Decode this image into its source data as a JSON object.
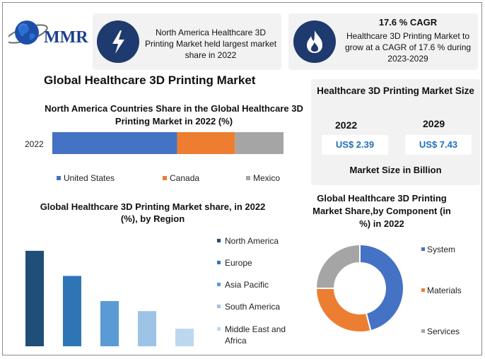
{
  "brand": {
    "logo_text": "MMR"
  },
  "info_box_left": {
    "text": "North America Healthcare 3D Printing Market held largest market share in 2022",
    "icon": "lightning-icon"
  },
  "info_box_right": {
    "title": "17.6 % CAGR",
    "text": "Healthcare 3D Printing Market to grow at a CAGR of 17.6 % during 2023-2029",
    "icon": "flame-icon"
  },
  "main_title": "Global Healthcare 3D Printing Market",
  "market_size": {
    "title": "Healthcare 3D Printing Market Size",
    "year_1": "2022",
    "value_1": "US$ 2.39",
    "year_2": "2029",
    "value_2": "US$ 7.43",
    "footer": "Market Size in Billion"
  },
  "colors": {
    "navy": "#1e3a6e",
    "united_states": "#4472c4",
    "canada": "#ed7d31",
    "mexico": "#a5a5a5",
    "north_america": "#1f4e79",
    "europe": "#2e75b6",
    "asia_pacific": "#5b9bd5",
    "south_america": "#9dc3e6",
    "mea": "#bdd7ee"
  },
  "chart_data": [
    {
      "type": "bar",
      "orientation": "horizontal-stacked",
      "title": "North America Countries Share in the Global Healthcare 3D Printing Market  in 2022 (%)",
      "categories": [
        "2022"
      ],
      "series": [
        {
          "name": "United States",
          "values": [
            54
          ]
        },
        {
          "name": "Canada",
          "values": [
            25
          ]
        },
        {
          "name": "Mexico",
          "values": [
            21
          ]
        }
      ],
      "legend": "bottom"
    },
    {
      "type": "bar",
      "title": "Global Healthcare 3D Printing Market share, in 2022 (%), by Region",
      "categories": [
        "North America",
        "Europe",
        "Asia Pacific",
        "South America",
        "Middle East and Africa"
      ],
      "values": [
        38,
        28,
        18,
        14,
        7
      ],
      "ylim": [
        0,
        45
      ],
      "legend": "right"
    },
    {
      "type": "pie",
      "style": "donut",
      "title": "Global Healthcare 3D Printing Market Share,by Component (in %) in 2022",
      "categories": [
        "System",
        "Materials",
        "Services"
      ],
      "values": [
        46,
        29,
        25
      ],
      "legend": "right"
    }
  ]
}
